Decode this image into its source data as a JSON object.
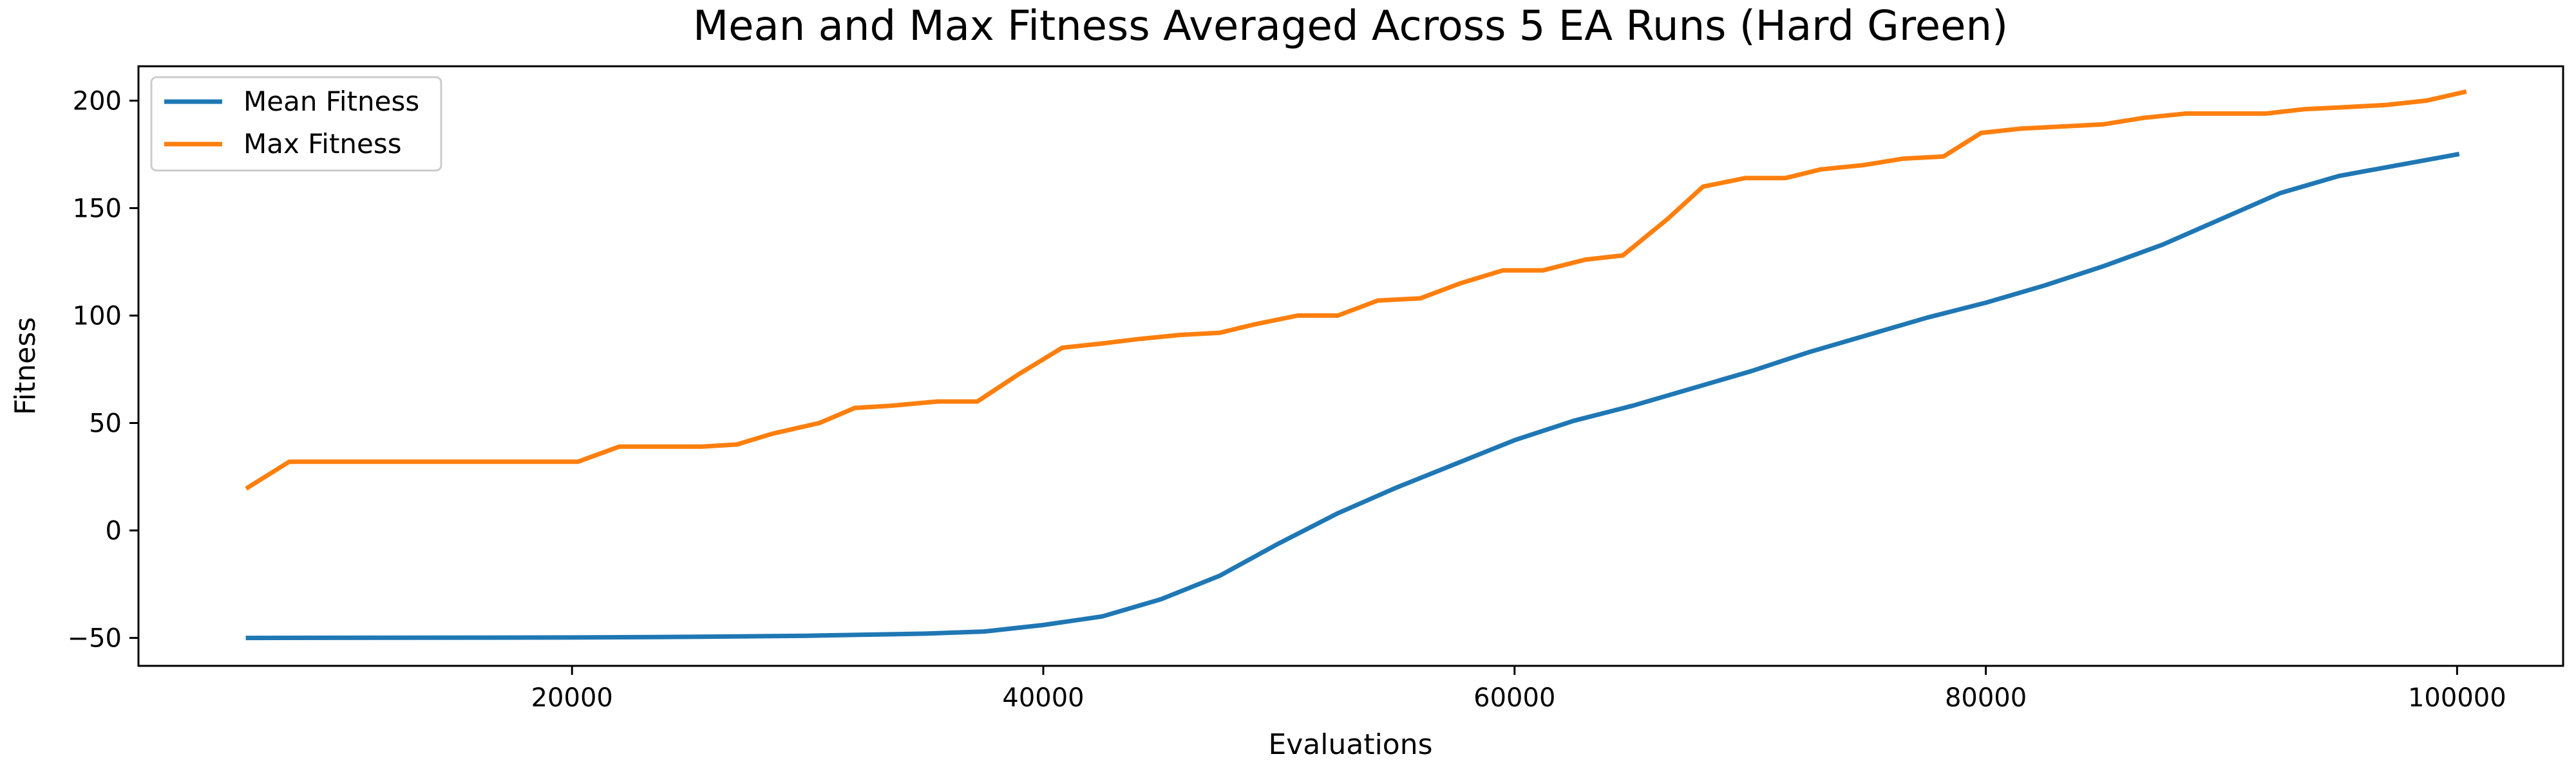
{
  "chart_data": {
    "type": "line",
    "title": "Mean and Max Fitness Averaged Across 5 EA Runs (Hard Green)",
    "xlabel": "Evaluations",
    "ylabel": "Fitness",
    "xlim": [
      1600,
      104500
    ],
    "ylim": [
      -63,
      216
    ],
    "xticks": [
      20000,
      40000,
      60000,
      80000,
      100000
    ],
    "yticks": [
      -50,
      0,
      50,
      100,
      150,
      200
    ],
    "grid": false,
    "legend_position": "top-left",
    "series": [
      {
        "name": "Mean Fitness",
        "color": "#1f77b4",
        "x": [
          6250,
          20000,
          25000,
          30000,
          35000,
          37500,
          40000,
          42500,
          45000,
          47500,
          50000,
          52500,
          55000,
          57500,
          60000,
          62500,
          65000,
          67500,
          70000,
          72500,
          75000,
          77500,
          80000,
          82500,
          85000,
          87500,
          90000,
          92500,
          95000,
          97500,
          100000
        ],
        "y": [
          -50,
          -49.8,
          -49.5,
          -49,
          -48,
          -47,
          -44,
          -40,
          -32,
          -21,
          -6,
          8,
          20,
          31,
          42,
          51,
          58,
          66,
          74,
          83,
          91,
          99,
          106,
          114,
          123,
          133,
          145,
          157,
          165,
          170,
          175
        ]
      },
      {
        "name": "Max Fitness",
        "color": "#ff7f0e",
        "x": [
          6250,
          8000,
          20250,
          22000,
          25500,
          27000,
          28500,
          30500,
          32000,
          33500,
          35500,
          37200,
          39000,
          40800,
          42500,
          44000,
          45800,
          47500,
          49000,
          50800,
          52500,
          54200,
          56000,
          57700,
          59500,
          61200,
          63000,
          64600,
          66500,
          68000,
          69800,
          71500,
          73000,
          74800,
          76500,
          78200,
          79800,
          81500,
          83300,
          85000,
          86700,
          88500,
          90200,
          91900,
          93500,
          95300,
          97000,
          98700,
          100300
        ],
        "y": [
          20,
          32,
          32,
          39,
          39,
          40,
          45,
          50,
          57,
          58,
          60,
          60,
          73,
          85,
          87,
          89,
          91,
          92,
          96,
          100,
          100,
          107,
          108,
          115,
          121,
          121,
          126,
          128,
          145,
          160,
          164,
          164,
          168,
          170,
          173,
          174,
          185,
          187,
          188,
          189,
          192,
          194,
          194,
          194,
          196,
          197,
          198,
          200,
          204
        ]
      }
    ]
  }
}
